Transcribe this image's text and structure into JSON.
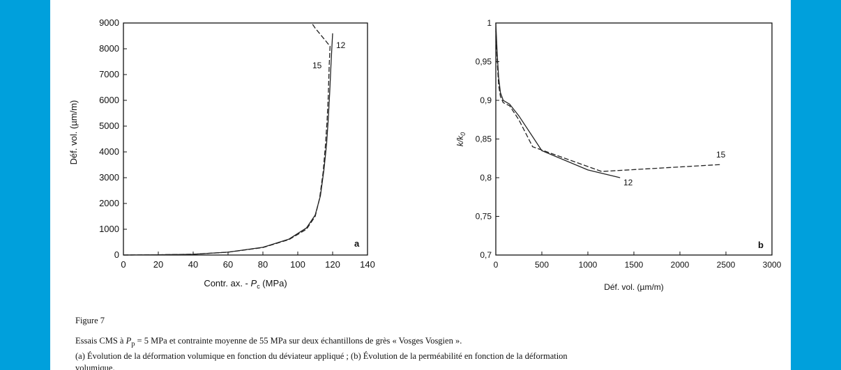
{
  "chart_data": [
    {
      "type": "line",
      "panel_letter": "a",
      "xlabel_pre": "Contr. ax. - ",
      "xlabel_sym": "P",
      "xlabel_sub": "c",
      "xlabel_post": " (MPa)",
      "ylabel": "Déf. vol. (µm/m)",
      "xlim": [
        0,
        140
      ],
      "ylim": [
        0,
        9000
      ],
      "x_ticks": [
        0,
        20,
        40,
        60,
        80,
        100,
        120,
        140
      ],
      "y_ticks": [
        0,
        1000,
        2000,
        3000,
        4000,
        5000,
        6000,
        7000,
        8000,
        9000
      ],
      "x_tick_labels": [
        "0",
        "20",
        "40",
        "60",
        "80",
        "100",
        "120",
        "140"
      ],
      "y_tick_labels": [
        "0",
        "1000",
        "2000",
        "3000",
        "4000",
        "5000",
        "6000",
        "7000",
        "8000",
        "9000"
      ],
      "series": [
        {
          "name": "12",
          "x": [
            0,
            20,
            40,
            60,
            80,
            95,
            105,
            110,
            113,
            115,
            116.5,
            117.5,
            118.3,
            119,
            119.5,
            120
          ],
          "y": [
            0,
            10,
            30,
            110,
            300,
            620,
            1050,
            1550,
            2300,
            3300,
            4300,
            5300,
            6300,
            7300,
            8000,
            8600
          ]
        },
        {
          "name": "15",
          "x": [
            0,
            20,
            40,
            60,
            80,
            95,
            105,
            110,
            112.5,
            114.5,
            115.8,
            116.8,
            117.5,
            118,
            118.5,
            110,
            108
          ],
          "y": [
            0,
            10,
            30,
            110,
            290,
            600,
            1000,
            1500,
            2200,
            3200,
            4200,
            5200,
            6200,
            7300,
            8100,
            8800,
            9000
          ]
        }
      ]
    },
    {
      "type": "line",
      "panel_letter": "b",
      "xlabel": "Déf. vol. (µm/m)",
      "ylabel_pre": "k/k",
      "ylabel_sub": "0",
      "xlim": [
        0,
        3000
      ],
      "ylim": [
        0.7,
        1
      ],
      "x_ticks": [
        0,
        500,
        1000,
        1500,
        2000,
        2500,
        3000
      ],
      "y_ticks": [
        0.7,
        0.75,
        0.8,
        0.85,
        0.9,
        0.95,
        1
      ],
      "x_tick_labels": [
        "0",
        "500",
        "1000",
        "1500",
        "2000",
        "2500",
        "3000"
      ],
      "y_tick_labels": [
        "0,7",
        "0,75",
        "0,8",
        "0,85",
        "0,9",
        "0,95",
        "1"
      ],
      "series": [
        {
          "name": "12",
          "x": [
            0,
            15,
            30,
            50,
            80,
            150,
            250,
            500,
            1000,
            1350
          ],
          "y": [
            1,
            0.96,
            0.93,
            0.91,
            0.9,
            0.895,
            0.88,
            0.835,
            0.81,
            0.8
          ]
        },
        {
          "name": "15",
          "x": [
            0,
            15,
            30,
            50,
            80,
            150,
            250,
            400,
            1150,
            2450
          ],
          "y": [
            0.99,
            0.95,
            0.92,
            0.905,
            0.897,
            0.893,
            0.875,
            0.84,
            0.808,
            0.817
          ]
        }
      ]
    }
  ],
  "caption": {
    "figure_title": "Figure 7",
    "line1_pre": "Essais CMS à ",
    "line1_sym": "P",
    "line1_sub": "p",
    "line1_post": " = 5 MPa et contrainte moyenne de 55 MPa sur deux échantillons de grès « Vosges Vosgien ».",
    "line2": "(a) Évolution de la déformation volumique en fonction du déviateur appliqué ; (b) Évolution de la perméabilité en fonction de la déformation",
    "line3": "volumique."
  }
}
